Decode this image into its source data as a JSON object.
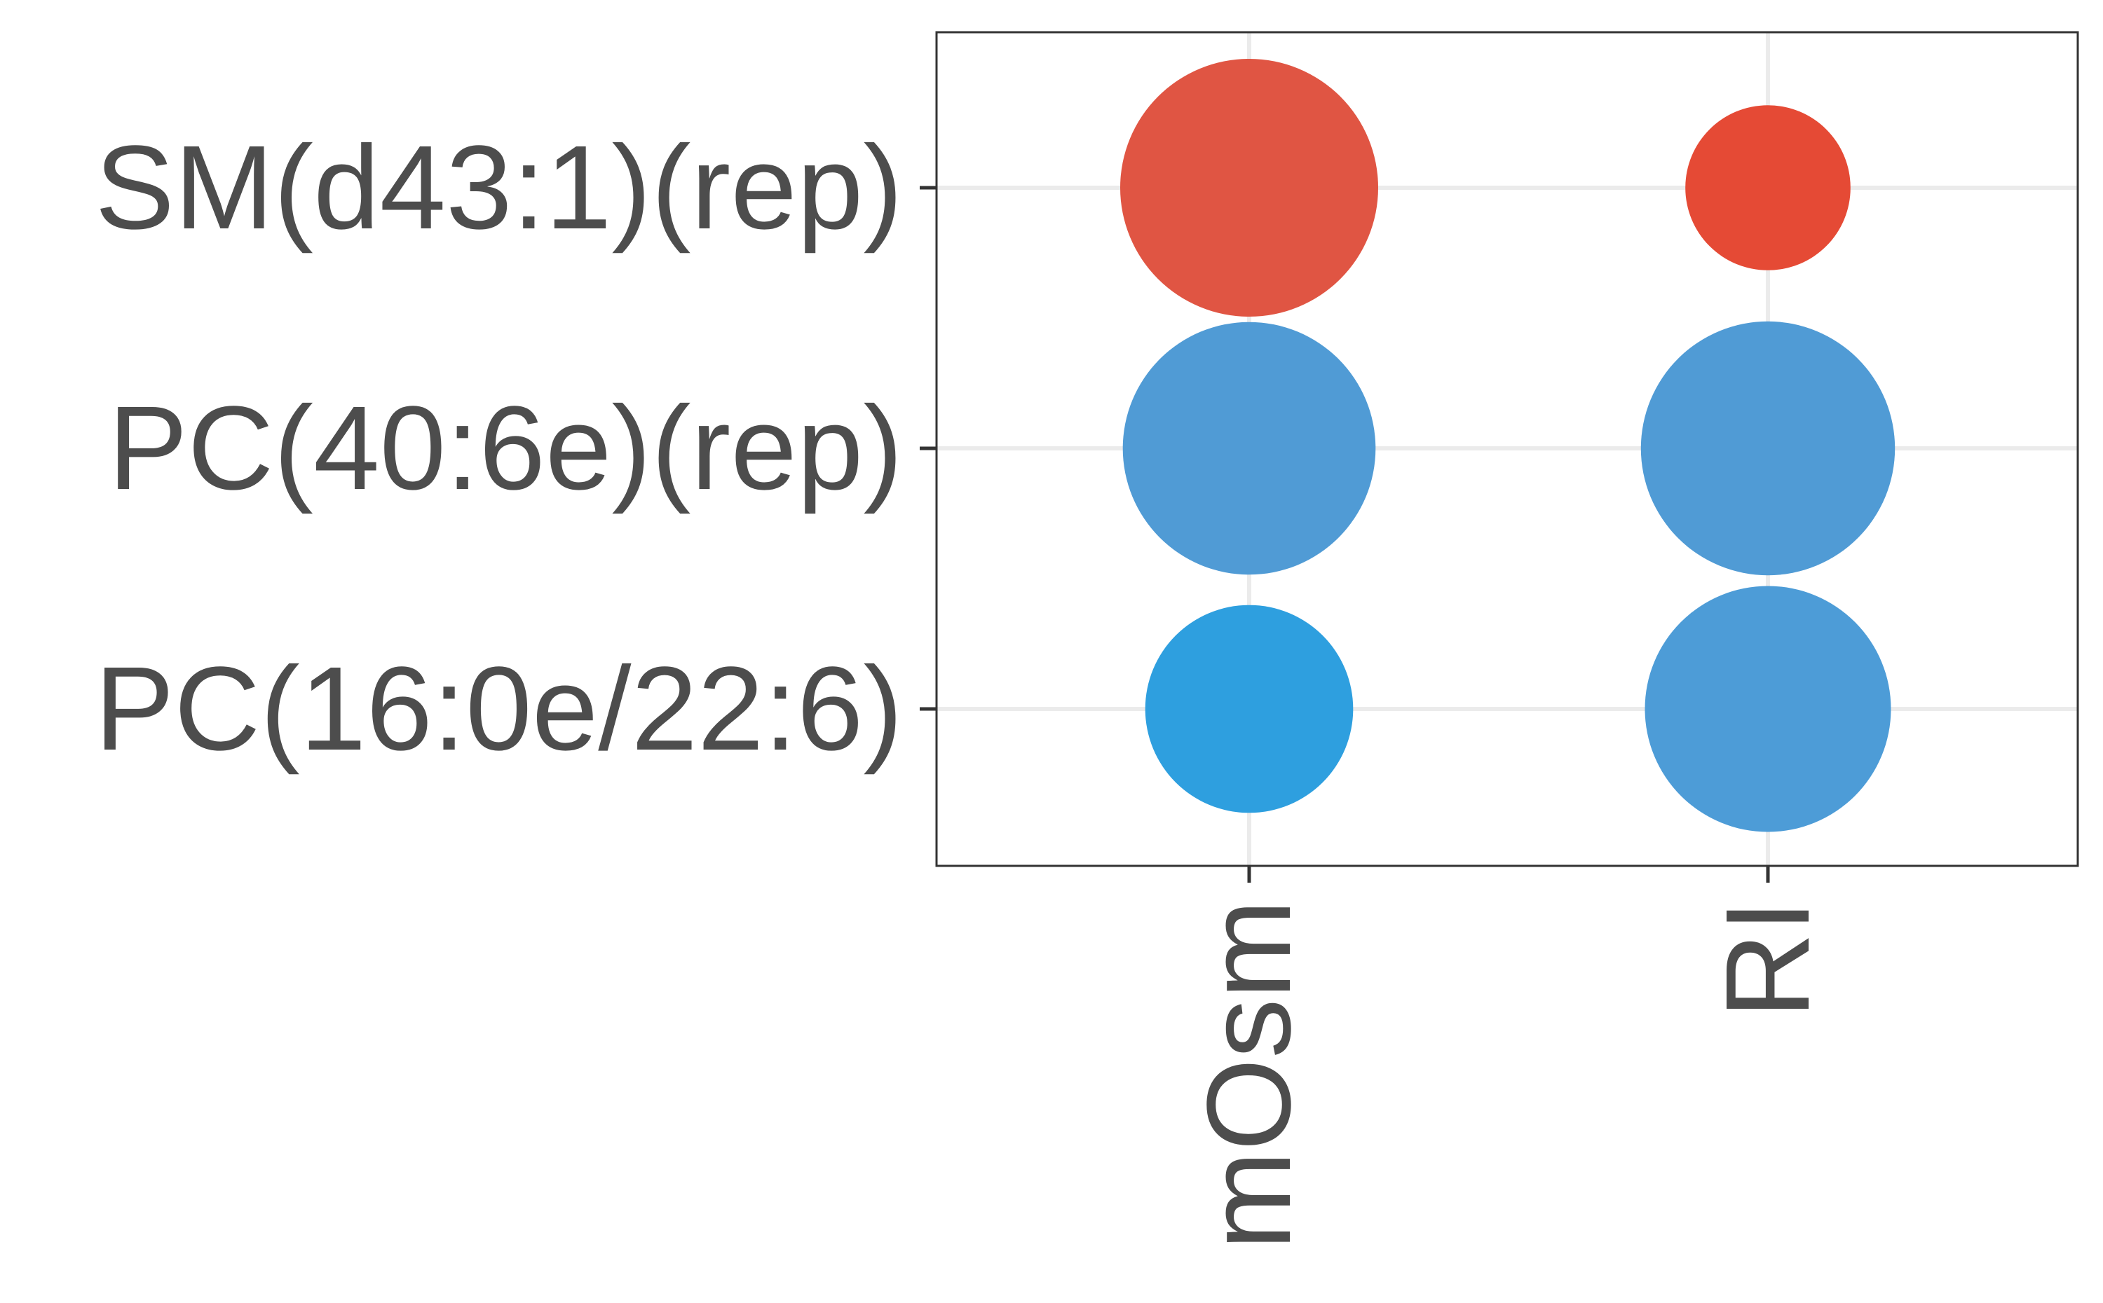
{
  "chart_data": {
    "type": "scatter",
    "subtype": "bubble",
    "title": "",
    "xlabel": "",
    "ylabel": "",
    "x_categories": [
      "mOsm",
      "RI"
    ],
    "y_categories": [
      "SM(d43:1)(rep)",
      "PC(40:6e)(rep)",
      "PC(16:0e/22:6)"
    ],
    "grid": true,
    "legend": "none",
    "points": [
      {
        "x": "mOsm",
        "y": "SM(d43:1)(rep)",
        "size": 1.0,
        "color": "#E05543"
      },
      {
        "x": "RI",
        "y": "SM(d43:1)(rep)",
        "size": 0.41,
        "color": "#E54A35"
      },
      {
        "x": "mOsm",
        "y": "PC(40:6e)(rep)",
        "size": 0.96,
        "color": "#509BD5"
      },
      {
        "x": "RI",
        "y": "PC(40:6e)(rep)",
        "size": 0.97,
        "color": "#509BD5"
      },
      {
        "x": "mOsm",
        "y": "PC(16:0e/22:6)",
        "size": 0.65,
        "color": "#2E9FDF"
      },
      {
        "x": "RI",
        "y": "PC(16:0e/22:6)",
        "size": 0.91,
        "color": "#4D9CD7"
      }
    ]
  },
  "colors": {
    "text": "#4D4D4D",
    "grid": "#EBEBEB",
    "panel_border": "#333333",
    "background": "#FFFFFF"
  }
}
